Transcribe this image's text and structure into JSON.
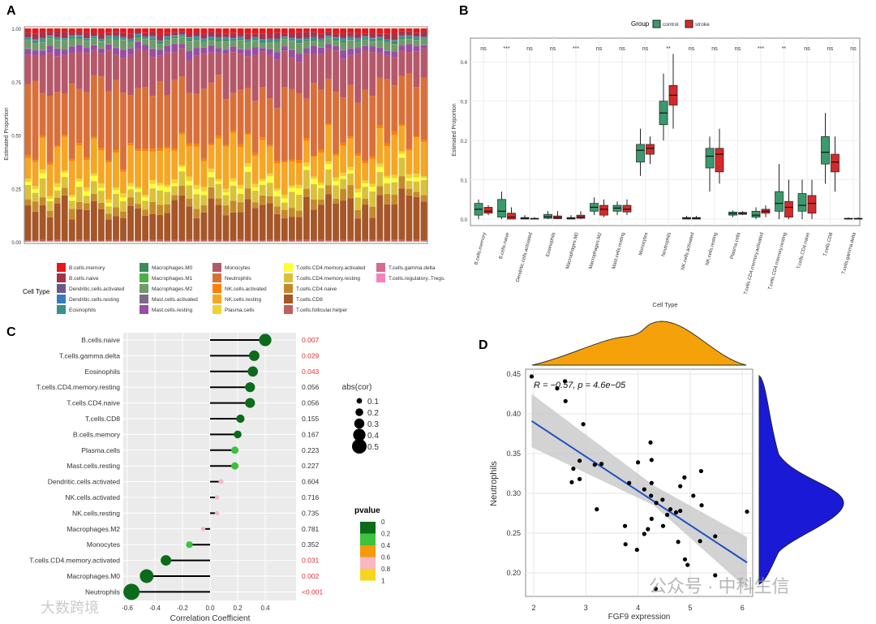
{
  "panel_labels": [
    "A",
    "B",
    "C",
    "D"
  ],
  "watermarks": [
    "公众号 · 中科生信",
    "大数跨境"
  ],
  "chart_data": [
    {
      "type": "bar",
      "stacked": true,
      "panel": "A",
      "ylabel": "Estimated Proportion",
      "ylim": [
        0,
        1
      ],
      "yticks": [
        "0.00",
        "0.25",
        "0.50",
        "0.75",
        "1.00"
      ],
      "n_samples": 55,
      "legend_title": "Cell Type",
      "cell_types": [
        "B.cells.memory",
        "B.cells.naive",
        "Dendritic.cells.activated",
        "Dendritic.cells.resting",
        "Eosinophils",
        "Macrophages.M0",
        "Macrophages.M1",
        "Macrophages.M2",
        "Mast.cells.activated",
        "Mast.cells.resting",
        "Monocytes",
        "Neutrophils",
        "NK.cells.activated",
        "NK.cells.resting",
        "Plasma.cells",
        "T.cells.CD4.memory.activated",
        "T.cells.CD4.memory.resting",
        "T.cells.CD4.naive",
        "T.cells.CD8",
        "T.cells.follicular.helper",
        "T.cells.gamma.delta",
        "T.cells.regulatory..Tregs."
      ],
      "colors": [
        "#e41a1c",
        "#a3334a",
        "#6a5a8a",
        "#377eb8",
        "#3a8f8f",
        "#3b8c5a",
        "#4daf4a",
        "#6f9a6a",
        "#7d6b8a",
        "#984ea3",
        "#b5586a",
        "#d9703a",
        "#ff7f00",
        "#f5a623",
        "#f2d230",
        "#ffff33",
        "#d9c23a",
        "#c48a2a",
        "#a65628",
        "#c0605a",
        "#d66a8a",
        "#f781bf"
      ],
      "mean_proportions": [
        0.02,
        0.02,
        0.003,
        0.002,
        0.007,
        0.005,
        0.002,
        0.03,
        0.003,
        0.028,
        0.17,
        0.28,
        0.01,
        0.15,
        0.015,
        0.02,
        0.06,
        0.04,
        0.16,
        0.005,
        0.002,
        0.001
      ]
    },
    {
      "type": "box",
      "panel": "B",
      "xlabel": "Cell Type",
      "ylabel": "Estimated Proportion",
      "ylim": [
        0,
        0.45
      ],
      "yticks": [
        "0.0",
        "0.1",
        "0.2",
        "0.3",
        "0.4"
      ],
      "legend_title": "Group",
      "groups": [
        "control",
        "stroke"
      ],
      "group_colors": [
        "#3a9a6e",
        "#d42a2a"
      ],
      "categories": [
        "B.cells.memory",
        "B.cells.naive",
        "Dendritic.cells.activated",
        "Eosinophils",
        "Macrophages.M0",
        "Macrophages.M2",
        "Mast.cells.resting",
        "Monocytes",
        "Neutrophils",
        "NK.cells.activated",
        "NK.cells.resting",
        "Plasma.cells",
        "T.cells.CD4.memory.activated",
        "T.cells.CD4.memory.resting",
        "T.cells.CD4.naive",
        "T.cells.CD8",
        "T.cells.gamma.delta"
      ],
      "significance": [
        "ns",
        "***",
        "ns",
        "ns",
        "***",
        "ns",
        "ns",
        "ns",
        "**",
        "ns",
        "ns",
        "ns",
        "***",
        "**",
        "ns",
        "ns",
        "ns"
      ],
      "control": [
        [
          0,
          0.01,
          0.025,
          0.04,
          0.05
        ],
        [
          0,
          0.005,
          0.02,
          0.05,
          0.07
        ],
        [
          0,
          0,
          0.002,
          0.004,
          0.01
        ],
        [
          0,
          0.002,
          0.006,
          0.012,
          0.02
        ],
        [
          0,
          0,
          0.002,
          0.004,
          0.01
        ],
        [
          0.01,
          0.02,
          0.03,
          0.04,
          0.055
        ],
        [
          0.01,
          0.02,
          0.028,
          0.035,
          0.045
        ],
        [
          0.11,
          0.145,
          0.175,
          0.19,
          0.23
        ],
        [
          0.2,
          0.24,
          0.27,
          0.3,
          0.37
        ],
        [
          0,
          0,
          0.002,
          0.004,
          0.008
        ],
        [
          0.07,
          0.13,
          0.16,
          0.18,
          0.21
        ],
        [
          0.005,
          0.01,
          0.014,
          0.018,
          0.022
        ],
        [
          0,
          0.005,
          0.01,
          0.02,
          0.03
        ],
        [
          0,
          0.02,
          0.04,
          0.07,
          0.14
        ],
        [
          0,
          0.02,
          0.035,
          0.065,
          0.1
        ],
        [
          0.09,
          0.14,
          0.17,
          0.21,
          0.27
        ],
        [
          0,
          0,
          0.001,
          0.002,
          0.004
        ]
      ],
      "stroke": [
        [
          0.01,
          0.015,
          0.02,
          0.03,
          0.035
        ],
        [
          0,
          0,
          0.005,
          0.015,
          0.03
        ],
        [
          0,
          0,
          0.001,
          0.002,
          0.005
        ],
        [
          0,
          0.001,
          0.004,
          0.008,
          0.02
        ],
        [
          0,
          0.002,
          0.005,
          0.01,
          0.02
        ],
        [
          0.005,
          0.01,
          0.025,
          0.035,
          0.05
        ],
        [
          0.01,
          0.018,
          0.025,
          0.035,
          0.05
        ],
        [
          0.14,
          0.165,
          0.18,
          0.19,
          0.21
        ],
        [
          0.23,
          0.29,
          0.315,
          0.34,
          0.42
        ],
        [
          0,
          0,
          0.002,
          0.004,
          0.008
        ],
        [
          0.09,
          0.12,
          0.165,
          0.18,
          0.23
        ],
        [
          0.01,
          0.012,
          0.015,
          0.017,
          0.02
        ],
        [
          0.005,
          0.015,
          0.02,
          0.025,
          0.035
        ],
        [
          0,
          0.005,
          0.03,
          0.045,
          0.1
        ],
        [
          0,
          0.015,
          0.04,
          0.06,
          0.1
        ],
        [
          0.07,
          0.12,
          0.145,
          0.165,
          0.21
        ],
        [
          0,
          0,
          0.001,
          0.002,
          0.004
        ]
      ]
    },
    {
      "type": "lollipop",
      "panel": "C",
      "xlabel": "Correlation Coefficient",
      "xlim": [
        -0.6,
        0.45
      ],
      "xticks": [
        "-0.6",
        "-0.4",
        "-0.2",
        "0.0",
        "0.2",
        "0.4"
      ],
      "categories": [
        "B.cells.naive",
        "T.cells.gamma.delta",
        "Eosinophils",
        "T.cells.CD4.memory.resting",
        "T.cells.CD4.naive",
        "T.cells.CD8",
        "B.cells.memory",
        "Plasma.cells",
        "Mast.cells.resting",
        "Dendritic.cells.activated",
        "NK.cells.activated",
        "NK.cells.resting",
        "Macrophages.M2",
        "Monocytes",
        "T.cells.CD4.memory.activated",
        "Macrophages.M0",
        "Neutrophils"
      ],
      "cor": [
        0.4,
        0.32,
        0.31,
        0.29,
        0.29,
        0.22,
        0.2,
        0.18,
        0.18,
        0.08,
        0.05,
        0.05,
        -0.05,
        -0.15,
        -0.32,
        -0.46,
        -0.57
      ],
      "pvalue_labels": [
        "0.007",
        "0.029",
        "0.043",
        "0.056",
        "0.056",
        "0.155",
        "0.167",
        "0.223",
        "0.227",
        "0.604",
        "0.716",
        "0.735",
        "0.781",
        "0.352",
        "0.031",
        "0.002",
        "<0.001"
      ],
      "pvalues": [
        0.007,
        0.029,
        0.043,
        0.056,
        0.056,
        0.155,
        0.167,
        0.223,
        0.227,
        0.604,
        0.716,
        0.735,
        0.781,
        0.352,
        0.031,
        0.002,
        0.0005
      ],
      "size_legend_title": "abs(cor)",
      "size_legend": [
        "0.1",
        "0.2",
        "0.3",
        "0.4",
        "0.5"
      ],
      "color_legend_title": "pvalue",
      "color_legend": [
        "0",
        "0.2",
        "0.4",
        "0.6",
        "0.8",
        "1"
      ],
      "color_scale": [
        "#0b6b1a",
        "#3cc23c",
        "#f59a0a",
        "#f7b8c4",
        "#f7d51e"
      ],
      "significant_color": "#e03030"
    },
    {
      "type": "scatter",
      "panel": "D",
      "xlabel": "FGF9 expression",
      "ylabel": "Neutrophils",
      "xlim": [
        1.9,
        6.2
      ],
      "ylim": [
        0.175,
        0.455
      ],
      "xticks": [
        "2",
        "3",
        "4",
        "5",
        "6"
      ],
      "yticks": [
        "0.20",
        "0.25",
        "0.30",
        "0.35",
        "0.40",
        "0.45"
      ],
      "annotation": "R = −0.57, p = 4.6e−05",
      "fit_line": {
        "x": [
          1.96,
          6.09
        ],
        "y": [
          0.391,
          0.213
        ]
      },
      "x": [
        1.96,
        2.45,
        2.6,
        2.61,
        2.95,
        2.88,
        2.76,
        2.73,
        2.88,
        3.17,
        3.3,
        3.21,
        3.75,
        3.76,
        3.83,
        4.0,
        3.98,
        4.12,
        4.12,
        4.19,
        4.24,
        4.26,
        4.26,
        4.25,
        4.26,
        4.35,
        4.47,
        4.48,
        4.56,
        4.62,
        4.73,
        4.81,
        4.81,
        4.89,
        4.77,
        4.9,
        4.95,
        5.06,
        5.21,
        5.22,
        5.19,
        5.48,
        5.48,
        4.34,
        6.09
      ],
      "y": [
        0.447,
        0.432,
        0.441,
        0.416,
        0.387,
        0.341,
        0.331,
        0.314,
        0.318,
        0.336,
        0.337,
        0.28,
        0.259,
        0.236,
        0.313,
        0.339,
        0.229,
        0.305,
        0.249,
        0.255,
        0.364,
        0.342,
        0.313,
        0.297,
        0.268,
        0.288,
        0.292,
        0.259,
        0.273,
        0.28,
        0.276,
        0.278,
        0.309,
        0.32,
        0.239,
        0.217,
        0.21,
        0.297,
        0.328,
        0.285,
        0.24,
        0.246,
        0.197,
        0.18,
        0.277
      ],
      "x_density_color": "#f5a20a",
      "y_density_color": "#1a1ad6"
    }
  ]
}
